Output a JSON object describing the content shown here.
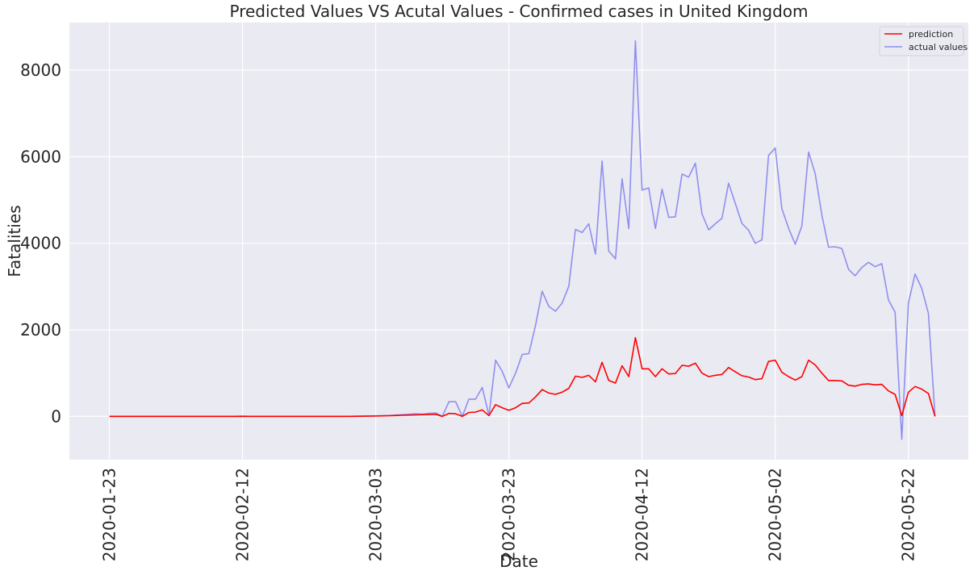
{
  "chart_data": {
    "type": "line",
    "title": "Predicted Values VS Acutal Values - Confirmed cases in United Kingdom",
    "xlabel": "Date",
    "ylabel": "Fatalities",
    "x_range": [
      "2020-01-17",
      "2020-05-31"
    ],
    "ylim": [
      -1000,
      9100
    ],
    "x_ticks": [
      "2020-01-23",
      "2020-02-12",
      "2020-03-03",
      "2020-03-23",
      "2020-04-12",
      "2020-05-02",
      "2020-05-22"
    ],
    "y_ticks": [
      0,
      2000,
      4000,
      6000,
      8000
    ],
    "y_tick_labels": [
      "0",
      "2000",
      "4000",
      "6000",
      "8000"
    ],
    "grid": true,
    "legend_position": "top-right",
    "x": [
      "2020-01-23",
      "2020-01-24",
      "2020-01-25",
      "2020-01-26",
      "2020-01-27",
      "2020-01-28",
      "2020-01-29",
      "2020-01-30",
      "2020-01-31",
      "2020-02-01",
      "2020-02-02",
      "2020-02-03",
      "2020-02-04",
      "2020-02-05",
      "2020-02-06",
      "2020-02-07",
      "2020-02-08",
      "2020-02-09",
      "2020-02-10",
      "2020-02-11",
      "2020-02-12",
      "2020-02-13",
      "2020-02-14",
      "2020-02-15",
      "2020-02-16",
      "2020-02-17",
      "2020-02-18",
      "2020-02-19",
      "2020-02-20",
      "2020-02-21",
      "2020-02-22",
      "2020-02-23",
      "2020-02-24",
      "2020-02-25",
      "2020-02-26",
      "2020-02-27",
      "2020-02-28",
      "2020-02-29",
      "2020-03-01",
      "2020-03-02",
      "2020-03-03",
      "2020-03-04",
      "2020-03-05",
      "2020-03-06",
      "2020-03-07",
      "2020-03-08",
      "2020-03-09",
      "2020-03-10",
      "2020-03-11",
      "2020-03-12",
      "2020-03-13",
      "2020-03-14",
      "2020-03-15",
      "2020-03-16",
      "2020-03-17",
      "2020-03-18",
      "2020-03-19",
      "2020-03-20",
      "2020-03-21",
      "2020-03-22",
      "2020-03-23",
      "2020-03-24",
      "2020-03-25",
      "2020-03-26",
      "2020-03-27",
      "2020-03-28",
      "2020-03-29",
      "2020-03-30",
      "2020-03-31",
      "2020-04-01",
      "2020-04-02",
      "2020-04-03",
      "2020-04-04",
      "2020-04-05",
      "2020-04-06",
      "2020-04-07",
      "2020-04-08",
      "2020-04-09",
      "2020-04-10",
      "2020-04-11",
      "2020-04-12",
      "2020-04-13",
      "2020-04-14",
      "2020-04-15",
      "2020-04-16",
      "2020-04-17",
      "2020-04-18",
      "2020-04-19",
      "2020-04-20",
      "2020-04-21",
      "2020-04-22",
      "2020-04-23",
      "2020-04-24",
      "2020-04-25",
      "2020-04-26",
      "2020-04-27",
      "2020-04-28",
      "2020-04-29",
      "2020-04-30",
      "2020-05-01",
      "2020-05-02",
      "2020-05-03",
      "2020-05-04",
      "2020-05-05",
      "2020-05-06",
      "2020-05-07",
      "2020-05-08",
      "2020-05-09",
      "2020-05-10",
      "2020-05-11",
      "2020-05-12",
      "2020-05-13",
      "2020-05-14",
      "2020-05-15",
      "2020-05-16",
      "2020-05-17",
      "2020-05-18",
      "2020-05-19",
      "2020-05-20",
      "2020-05-21",
      "2020-05-22",
      "2020-05-23",
      "2020-05-24",
      "2020-05-25",
      "2020-05-26"
    ],
    "series": [
      {
        "name": "prediction",
        "color": "#ff0000",
        "values": [
          0,
          0,
          0,
          0,
          0,
          0,
          0,
          0,
          0,
          0,
          0,
          0,
          0,
          0,
          0,
          0,
          0,
          0,
          0,
          0,
          2,
          0,
          0,
          0,
          0,
          0,
          0,
          0,
          0,
          0,
          0,
          0,
          0,
          0,
          0,
          0,
          1,
          2,
          4,
          8,
          10,
          12,
          15,
          20,
          25,
          30,
          35,
          40,
          45,
          50,
          0,
          70,
          60,
          0,
          90,
          100,
          150,
          20,
          270,
          200,
          140,
          200,
          300,
          310,
          450,
          620,
          540,
          510,
          560,
          650,
          930,
          900,
          950,
          800,
          1250,
          830,
          770,
          1170,
          920,
          1820,
          1100,
          1100,
          920,
          1100,
          980,
          990,
          1180,
          1160,
          1230,
          1000,
          920,
          950,
          970,
          1130,
          1030,
          940,
          910,
          850,
          870,
          1270,
          1300,
          1020,
          920,
          840,
          920,
          1300,
          1190,
          1000,
          830,
          830,
          820,
          720,
          700,
          740,
          750,
          730,
          740,
          590,
          510,
          20,
          560,
          690,
          630,
          530,
          0
        ]
      },
      {
        "name": "actual values",
        "color": "#8f8ff0",
        "values": [
          0,
          0,
          0,
          0,
          0,
          0,
          0,
          0,
          0,
          0,
          0,
          0,
          0,
          0,
          0,
          0,
          0,
          0,
          0,
          0,
          2,
          0,
          0,
          0,
          0,
          0,
          0,
          0,
          0,
          0,
          0,
          0,
          0,
          0,
          0,
          0,
          1,
          2,
          4,
          8,
          10,
          15,
          20,
          30,
          40,
          50,
          60,
          50,
          70,
          80,
          0,
          340,
          340,
          0,
          400,
          400,
          670,
          20,
          1300,
          1040,
          660,
          1000,
          1430,
          1450,
          2100,
          2890,
          2540,
          2430,
          2620,
          3010,
          4320,
          4250,
          4450,
          3750,
          5900,
          3820,
          3640,
          5490,
          4340,
          8680,
          5230,
          5280,
          4340,
          5250,
          4600,
          4610,
          5600,
          5530,
          5850,
          4680,
          4310,
          4450,
          4580,
          5390,
          4920,
          4460,
          4300,
          4000,
          4080,
          6030,
          6200,
          4800,
          4350,
          3980,
          4400,
          6110,
          5610,
          4650,
          3910,
          3920,
          3880,
          3400,
          3250,
          3440,
          3560,
          3460,
          3530,
          2690,
          2410,
          -530,
          2620,
          3290,
          2960,
          2380,
          0
        ]
      }
    ]
  }
}
